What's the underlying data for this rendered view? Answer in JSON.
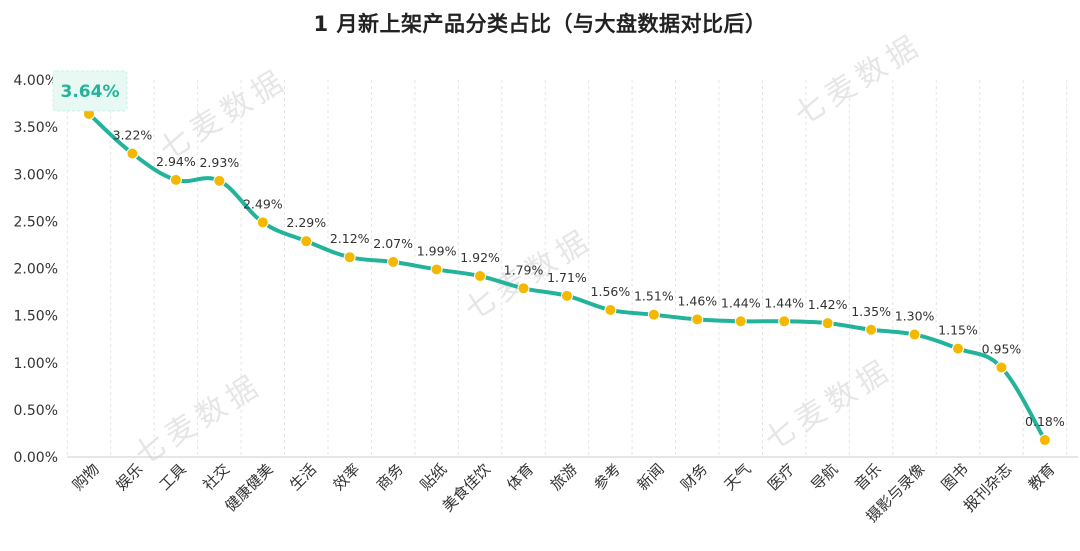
{
  "title": "1 月新上架产品分类占比（与大盘数据对比后）",
  "watermarks": [
    "七麦数据",
    "七麦数据",
    "七麦数据",
    "七麦数据",
    "七麦数据"
  ],
  "colors": {
    "line": "#22b39a",
    "point": "#f5b800",
    "highlight_bg": "#e8f9f4",
    "highlight_text": "#22b39a",
    "grid": "#e4e4e4",
    "text": "#333333"
  },
  "chart_data": {
    "type": "line",
    "categories": [
      "购物",
      "娱乐",
      "工具",
      "社交",
      "健康健美",
      "生活",
      "效率",
      "商务",
      "贴纸",
      "美食佳饮",
      "体育",
      "旅游",
      "参考",
      "新闻",
      "财务",
      "天气",
      "医疗",
      "导航",
      "音乐",
      "摄影与录像",
      "图书",
      "报刊杂志",
      "教育"
    ],
    "values": [
      3.64,
      3.22,
      2.94,
      2.93,
      2.49,
      2.29,
      2.12,
      2.07,
      1.99,
      1.92,
      1.79,
      1.71,
      1.56,
      1.51,
      1.46,
      1.44,
      1.44,
      1.42,
      1.35,
      1.3,
      1.15,
      0.95,
      0.18
    ],
    "value_labels": [
      "3.64%",
      "3.22%",
      "2.94%",
      "2.93%",
      "2.49%",
      "2.29%",
      "2.12%",
      "2.07%",
      "1.99%",
      "1.92%",
      "1.79%",
      "1.71%",
      "1.56%",
      "1.51%",
      "1.46%",
      "1.44%",
      "1.44%",
      "1.42%",
      "1.35%",
      "1.30%",
      "1.15%",
      "0.95%",
      "0.18%"
    ],
    "y_ticks": [
      "0.00%",
      "0.50%",
      "1.00%",
      "1.50%",
      "2.00%",
      "2.50%",
      "3.00%",
      "3.50%",
      "4.00%"
    ],
    "ylim": [
      0,
      4
    ],
    "grid": "vertical",
    "highlighted_label": "3.64%",
    "title": "1 月新上架产品分类占比（与大盘数据对比后）",
    "xlabel": "",
    "ylabel": ""
  }
}
